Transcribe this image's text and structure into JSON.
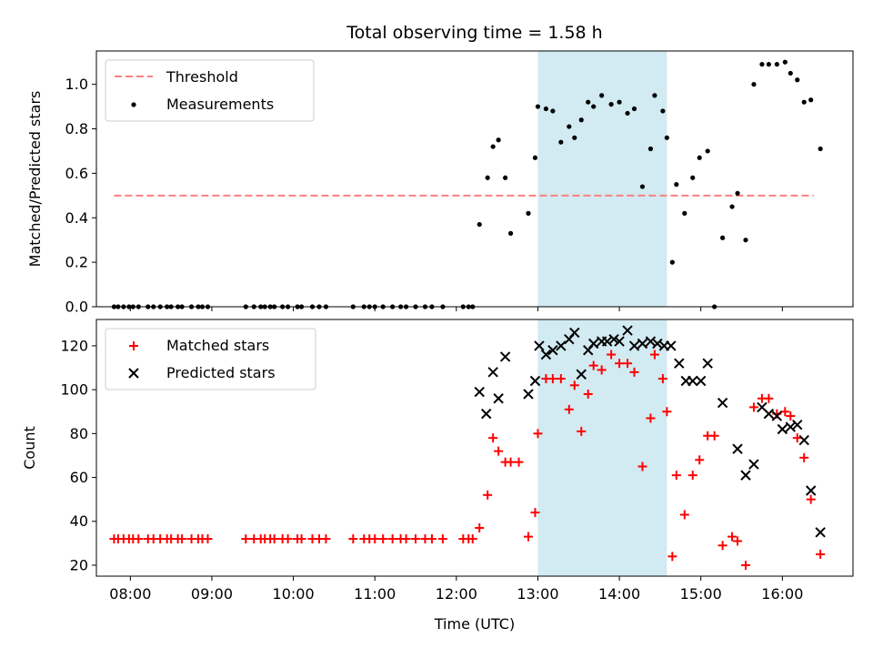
{
  "colors": {
    "threshold": "#ff7f7f",
    "measurement": "#000000",
    "matched": "#ff0000",
    "predicted": "#000000",
    "span": "#add8e6"
  },
  "chart_data": [
    {
      "type": "scatter",
      "title": "Total observing time = 1.58 h",
      "xlabel": "",
      "ylabel": "Matched/Predicted stars",
      "xlim": [
        "07:35",
        "16:52"
      ],
      "ylim": [
        0,
        1.15
      ],
      "yticks": [
        0.0,
        0.2,
        0.4,
        0.6,
        0.8,
        1.0
      ],
      "ytick_labels": [
        "0.0",
        "0.2",
        "0.4",
        "0.6",
        "0.8",
        "1.0"
      ],
      "grid": false,
      "legend_position": "top-left",
      "legend": [
        "Threshold",
        "Measurements"
      ],
      "highlight_span": [
        "13:00",
        "14:35"
      ],
      "threshold": {
        "name": "Threshold",
        "y": 0.5,
        "x_start": "07:48",
        "x_end": "16:23",
        "style": "dashed"
      },
      "series": [
        {
          "name": "Measurements",
          "x": [
            "07:48",
            "07:51",
            "07:55",
            "07:59",
            "08:02",
            "08:06",
            "08:13",
            "08:17",
            "08:22",
            "08:27",
            "08:30",
            "08:35",
            "08:38",
            "08:45",
            "08:50",
            "08:53",
            "08:57",
            "09:25",
            "09:31",
            "09:36",
            "09:39",
            "09:43",
            "09:46",
            "09:52",
            "09:56",
            "10:03",
            "10:06",
            "10:14",
            "10:19",
            "10:24",
            "10:44",
            "10:52",
            "10:56",
            "11:00",
            "11:06",
            "11:13",
            "11:19",
            "11:23",
            "11:30",
            "11:37",
            "11:42",
            "11:50",
            "12:05",
            "12:09",
            "12:12",
            "12:17",
            "12:23",
            "12:27",
            "12:31",
            "12:36",
            "12:40",
            "12:53",
            "12:58",
            "13:00",
            "13:06",
            "13:11",
            "13:17",
            "13:23",
            "13:27",
            "13:32",
            "13:37",
            "13:41",
            "13:47",
            "13:54",
            "14:00",
            "14:06",
            "14:11",
            "14:17",
            "14:23",
            "14:26",
            "14:32",
            "14:35",
            "14:39",
            "14:42",
            "14:48",
            "14:54",
            "14:59",
            "15:05",
            "15:10",
            "15:16",
            "15:23",
            "15:27",
            "15:33",
            "15:39",
            "15:45",
            "15:50",
            "15:56",
            "16:02",
            "16:06",
            "16:11",
            "16:16",
            "16:21",
            "16:28"
          ],
          "y": [
            0,
            0,
            0,
            0,
            0,
            0,
            0,
            0,
            0,
            0,
            0,
            0,
            0,
            0,
            0,
            0,
            0,
            0,
            0,
            0,
            0,
            0,
            0,
            0,
            0,
            0,
            0,
            0,
            0,
            0,
            0,
            0,
            0,
            0,
            0,
            0,
            0,
            0,
            0,
            0,
            0,
            0,
            0,
            0,
            0,
            0.37,
            0.58,
            0.72,
            0.75,
            0.58,
            0.33,
            0.42,
            0.67,
            0.9,
            0.89,
            0.88,
            0.74,
            0.81,
            0.76,
            0.84,
            0.92,
            0.9,
            0.95,
            0.91,
            0.92,
            0.87,
            0.89,
            0.54,
            0.71,
            0.95,
            0.88,
            0.76,
            0.2,
            0.55,
            0.42,
            0.58,
            0.67,
            0.7,
            0,
            0.31,
            0.45,
            0.51,
            0.3,
            1.0,
            1.09,
            1.09,
            1.09,
            1.1,
            1.05,
            1.02,
            0.92,
            0.93,
            0.71
          ]
        }
      ]
    },
    {
      "type": "scatter",
      "title": "",
      "xlabel": "Time (UTC)",
      "ylabel": "Count",
      "xlim": [
        "07:35",
        "16:52"
      ],
      "ylim": [
        15,
        132
      ],
      "yticks": [
        20,
        40,
        60,
        80,
        100,
        120
      ],
      "ytick_labels": [
        "20",
        "40",
        "60",
        "80",
        "100",
        "120"
      ],
      "xticks": [
        "08:00",
        "09:00",
        "10:00",
        "11:00",
        "12:00",
        "13:00",
        "14:00",
        "15:00",
        "16:00"
      ],
      "grid": false,
      "legend_position": "top-left",
      "legend": [
        "Matched stars",
        "Predicted stars"
      ],
      "highlight_span": [
        "13:00",
        "14:35"
      ],
      "series": [
        {
          "name": "Matched stars",
          "marker": "plus",
          "x": [
            "07:48",
            "07:51",
            "07:55",
            "07:59",
            "08:02",
            "08:06",
            "08:13",
            "08:17",
            "08:22",
            "08:27",
            "08:30",
            "08:35",
            "08:38",
            "08:45",
            "08:50",
            "08:53",
            "08:57",
            "09:25",
            "09:31",
            "09:36",
            "09:39",
            "09:43",
            "09:46",
            "09:52",
            "09:56",
            "10:03",
            "10:06",
            "10:14",
            "10:19",
            "10:24",
            "10:44",
            "10:52",
            "10:56",
            "11:00",
            "11:06",
            "11:13",
            "11:19",
            "11:23",
            "11:30",
            "11:37",
            "11:42",
            "11:50",
            "12:05",
            "12:09",
            "12:12",
            "12:17",
            "12:23",
            "12:27",
            "12:31",
            "12:36",
            "12:40",
            "12:46",
            "12:53",
            "12:58",
            "13:00",
            "13:06",
            "13:11",
            "13:17",
            "13:23",
            "13:27",
            "13:32",
            "13:37",
            "13:41",
            "13:47",
            "13:54",
            "14:00",
            "14:06",
            "14:11",
            "14:17",
            "14:23",
            "14:26",
            "14:32",
            "14:35",
            "14:39",
            "14:42",
            "14:48",
            "14:54",
            "14:59",
            "15:05",
            "15:10",
            "15:16",
            "15:23",
            "15:27",
            "15:33",
            "15:39",
            "15:45",
            "15:50",
            "15:56",
            "16:02",
            "16:06",
            "16:11",
            "16:16",
            "16:21",
            "16:28"
          ],
          "y": [
            32,
            32,
            32,
            32,
            32,
            32,
            32,
            32,
            32,
            32,
            32,
            32,
            32,
            32,
            32,
            32,
            32,
            32,
            32,
            32,
            32,
            32,
            32,
            32,
            32,
            32,
            32,
            32,
            32,
            32,
            32,
            32,
            32,
            32,
            32,
            32,
            32,
            32,
            32,
            32,
            32,
            32,
            32,
            32,
            32,
            37,
            52,
            78,
            72,
            67,
            67,
            67,
            33,
            44,
            80,
            105,
            105,
            105,
            91,
            102,
            81,
            98,
            111,
            109,
            116,
            112,
            112,
            108,
            65,
            87,
            116,
            105,
            90,
            24,
            61,
            43,
            61,
            68,
            79,
            79,
            29,
            33,
            31,
            20,
            92,
            96,
            96,
            89,
            90,
            88,
            78,
            69,
            50,
            25
          ]
        },
        {
          "name": "Predicted stars",
          "marker": "x",
          "x": [
            "12:17",
            "12:22",
            "12:27",
            "12:31",
            "12:36",
            "12:53",
            "12:58",
            "13:01",
            "13:06",
            "13:11",
            "13:17",
            "13:23",
            "13:27",
            "13:32",
            "13:37",
            "13:41",
            "13:47",
            "13:51",
            "13:56",
            "14:00",
            "14:06",
            "14:11",
            "14:17",
            "14:23",
            "14:28",
            "14:33",
            "14:38",
            "14:44",
            "14:49",
            "14:54",
            "15:00",
            "15:05",
            "15:16",
            "15:27",
            "15:33",
            "15:39",
            "15:45",
            "15:50",
            "15:56",
            "16:00",
            "16:06",
            "16:11",
            "16:16",
            "16:21",
            "16:28"
          ],
          "y": [
            99,
            89,
            108,
            96,
            115,
            98,
            104,
            120,
            116,
            118,
            120,
            123,
            126,
            107,
            118,
            121,
            122,
            122,
            123,
            122,
            127,
            120,
            121,
            122,
            121,
            120,
            120,
            112,
            104,
            104,
            104,
            112,
            94,
            73,
            61,
            66,
            92,
            89,
            88,
            82,
            83,
            84,
            77,
            54,
            35
          ]
        }
      ]
    }
  ]
}
